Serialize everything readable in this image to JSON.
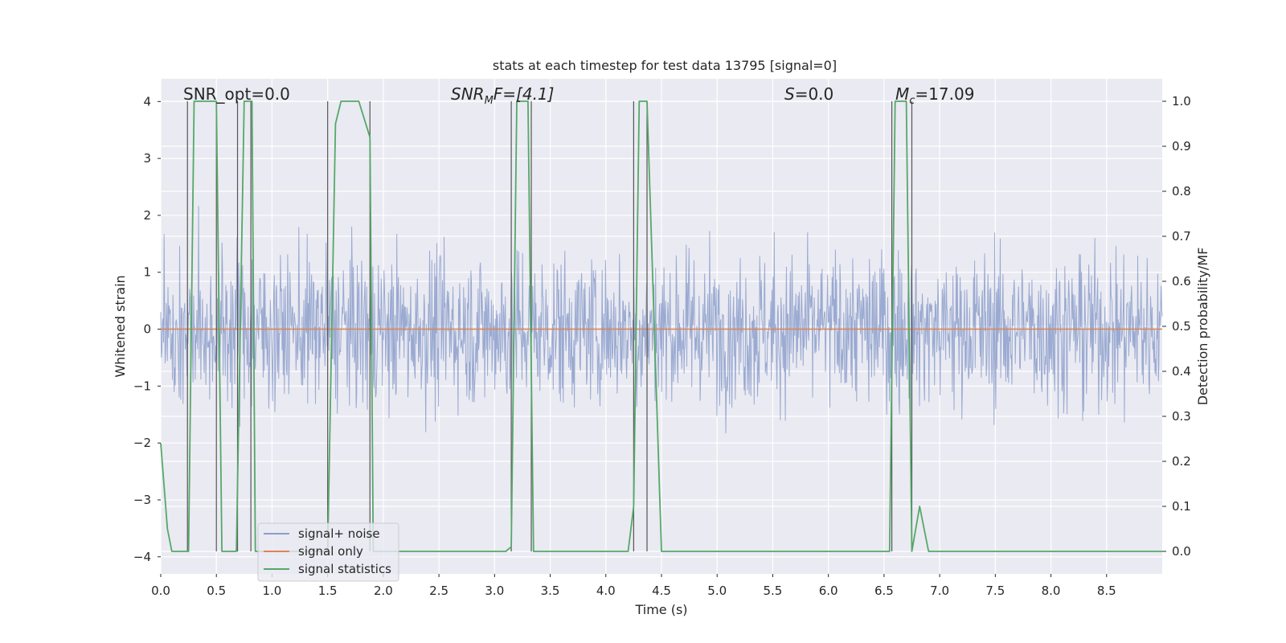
{
  "chart_data": {
    "type": "line",
    "title": "stats at each timestep for test data 13795 [signal=0]",
    "xlabel": "Time (s)",
    "ylabel": "Whitened strain",
    "y2label": "Detection probability/MF",
    "xlim": [
      0,
      9.0
    ],
    "ylim": [
      -4.3,
      4.4
    ],
    "y2lim": [
      -0.05,
      1.05
    ],
    "xticks": [
      "0.0",
      "0.5",
      "1.0",
      "1.5",
      "2.0",
      "2.5",
      "3.0",
      "3.5",
      "4.0",
      "4.5",
      "5.0",
      "5.5",
      "6.0",
      "6.5",
      "7.0",
      "7.5",
      "8.0",
      "8.5"
    ],
    "yticks": [
      "−4",
      "−3",
      "−2",
      "−1",
      "0",
      "1",
      "2",
      "3",
      "4"
    ],
    "y2ticks": [
      "0.0",
      "0.1",
      "0.2",
      "0.3",
      "0.4",
      "0.5",
      "0.6",
      "0.7",
      "0.8",
      "0.9",
      "1.0"
    ],
    "grid": true,
    "legend_position": "lower-left",
    "annotations": [
      "SNR_opt=0.0",
      "SNR",
      "M",
      "F=[4.1]",
      "S",
      "=0.0",
      "M",
      "c",
      "=17.09"
    ],
    "series": [
      {
        "name": "signal+ noise",
        "axis": "left",
        "color": "#8c9fcb",
        "description_range": [
          -4.0,
          4.0
        ],
        "envelope_typical": [
          -1.6,
          1.6
        ]
      },
      {
        "name": "signal only",
        "axis": "left",
        "color": "#dd8452",
        "values_constant": 0
      },
      {
        "name": "signal statistics",
        "axis": "right",
        "color": "#55a868",
        "x": [
          0.0,
          0.06,
          0.1,
          0.24,
          0.25,
          0.3,
          0.5,
          0.55,
          0.62,
          0.68,
          0.75,
          0.8,
          0.82,
          0.85,
          1.5,
          1.57,
          1.62,
          1.78,
          1.88,
          1.91,
          2.0,
          3.1,
          3.15,
          3.2,
          3.3,
          3.35,
          3.4,
          4.2,
          4.25,
          4.3,
          4.37,
          4.5,
          6.55,
          6.6,
          6.7,
          6.75,
          6.82,
          6.9,
          9.0
        ],
        "values": [
          0.24,
          0.05,
          0.0,
          0.0,
          0.0,
          1.0,
          1.0,
          0.0,
          0.0,
          0.0,
          1.0,
          1.0,
          1.0,
          0.0,
          0.0,
          0.95,
          1.0,
          1.0,
          0.92,
          0.0,
          0.0,
          0.0,
          0.01,
          1.0,
          1.0,
          0.0,
          0.0,
          0.0,
          0.1,
          1.0,
          1.0,
          0.0,
          0.0,
          1.0,
          1.0,
          0.0,
          0.1,
          0.0,
          0.0
        ]
      }
    ],
    "vertical_markers": {
      "color": "#555555",
      "x": [
        0.24,
        0.5,
        0.69,
        0.81,
        1.5,
        1.88,
        3.15,
        3.33,
        4.25,
        4.37,
        6.57,
        6.75
      ]
    }
  }
}
